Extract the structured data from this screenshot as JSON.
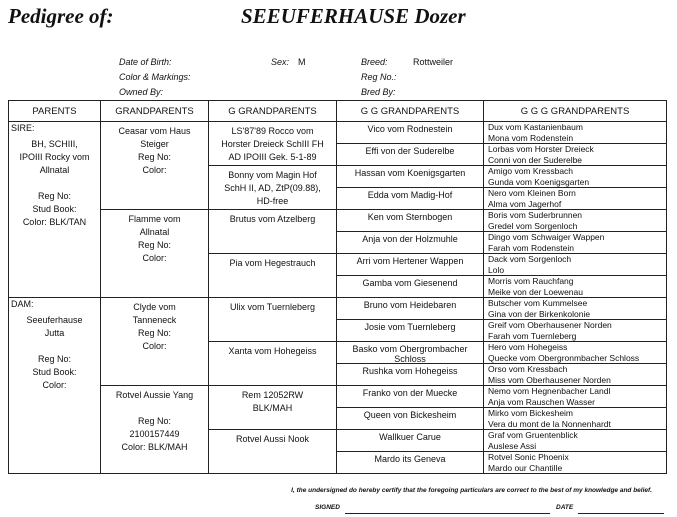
{
  "header": {
    "title_label": "Pedigree of:",
    "dog_name": "SEEUFERHAUSE Dozer"
  },
  "info": {
    "dob_label": "Date of Birth:",
    "sex_label": "Sex:",
    "sex_value": "M",
    "breed_label": "Breed:",
    "breed_value": "Rottweiler",
    "color_label": "Color & Markings:",
    "reg_label": "Reg No.:",
    "owned_label": "Owned By:",
    "bred_label": "Bred By:"
  },
  "columns": [
    "PARENTS",
    "GRANDPARENTS",
    "G GRANDPARENTS",
    "G G GRANDPARENTS",
    "G G G GRANDPARENTS"
  ],
  "parents": [
    {
      "role": "SIRE:",
      "lines": [
        "BH, SCHIII,",
        "IPOIII Rocky vom",
        "Allnatal",
        "",
        "Reg No:",
        "Stud Book:",
        "Color: BLK/TAN"
      ]
    },
    {
      "role": "DAM:",
      "lines": [
        "Seeuferhause",
        "Jutta",
        "",
        "Reg No:",
        "Stud Book:",
        "Color:"
      ]
    }
  ],
  "grandparents": [
    {
      "lines": [
        "Ceasar vom Haus",
        "Steiger",
        "Reg No:",
        "Color:"
      ]
    },
    {
      "lines": [
        "Flamme vom",
        "Allnatal",
        "Reg No:",
        "Color:"
      ]
    },
    {
      "lines": [
        "Clyde vom",
        "Tanneneck",
        "Reg No:",
        "Color:"
      ]
    },
    {
      "lines": [
        "Rotvel Aussie Yang",
        "",
        "Reg No:",
        "2100157449",
        "Color: BLK/MAH"
      ]
    }
  ],
  "g_grandparents": [
    {
      "lines": [
        "LS'87'89 Rocco vom",
        "Horster Dreieck SchIII FH",
        "AD IPOIII Gek. 5-1-89"
      ]
    },
    {
      "lines": [
        "Bonny vom Magin Hof",
        "SchH II, AD, ZtP(09.88),",
        "HD-free"
      ]
    },
    {
      "lines": [
        "Brutus vom Atzelberg"
      ]
    },
    {
      "lines": [
        "Pia vom Hegestrauch"
      ]
    },
    {
      "lines": [
        "Ulix vom Tuernleberg"
      ]
    },
    {
      "lines": [
        "Xanta vom Hohegeiss"
      ]
    },
    {
      "lines": [
        "Rem    12052RW",
        "BLK/MAH"
      ]
    },
    {
      "lines": [
        "Rotvel Aussi Nook"
      ]
    }
  ],
  "gg_grandparents": [
    "Vico vom Rodnestein",
    "Effi von der Suderelbe",
    "Hassan vom Koenigsgarten",
    "Edda vom Madig-Hof",
    "Ken vom Sternbogen",
    "Anja von der Holzmuhle",
    "Arri vom Hertener Wappen",
    "Gamba vom Giesenend",
    "Bruno vom Heidebaren",
    "Josie vom Tuernleberg",
    "Basko vom Obergrombacher Schloss",
    "Rushka vom Hohegeiss",
    "Franko von der Muecke",
    "Queen von Bickesheim",
    "Wallkuer Carue",
    "Mardo its Geneva"
  ],
  "ggg_grandparents": [
    [
      "Dux vom Kastanienbaum",
      "Mona vom Rodenstein"
    ],
    [
      "Lorbas vom Horster Dreieck",
      "Conni von der Suderelbe"
    ],
    [
      "Amigo vom Kressbach",
      "Gunda vom Koenigsgarten"
    ],
    [
      "Nero vom Kleinen Born",
      "Alma vom Jagerhof"
    ],
    [
      "Boris vom Suderbrunnen",
      "Gredel vom Sorgenloch"
    ],
    [
      "Dingo vom Schwaiger Wappen",
      "Farah vom Rodenstein"
    ],
    [
      "Dack vom Sorgenloch",
      "Lolo"
    ],
    [
      "Morris vom Rauchfang",
      "Meike von der Loewenau"
    ],
    [
      "Butscher vom Kummelsee",
      "Gina von der Birkenkolonie"
    ],
    [
      "Greif vom Oberhausener Norden",
      "Farah vom Tuernleberg"
    ],
    [
      "Hero vom Hohegeiss",
      "Quecke vom Obergronmbacher Schloss"
    ],
    [
      "Orso vom Kressbach",
      "Miss vom Oberhausener Norden"
    ],
    [
      "Nemo vom Hegnenbacher Landl",
      "Anja vom Rauschen Wasser"
    ],
    [
      "Mirko vom Bickesheim",
      "Vera du mont de la Nonnenhardt"
    ],
    [
      "Graf vom Gruentenblick",
      "Auslese Assi"
    ],
    [
      "Rotvel Sonic Phoenix",
      "Mardo our Chantille"
    ]
  ],
  "footer": {
    "certification": "I, the undersigned do hereby certify that the foregoing particulars are correct to the best of my knowledge and belief.",
    "signed_label": "SIGNED",
    "date_label": "DATE"
  }
}
